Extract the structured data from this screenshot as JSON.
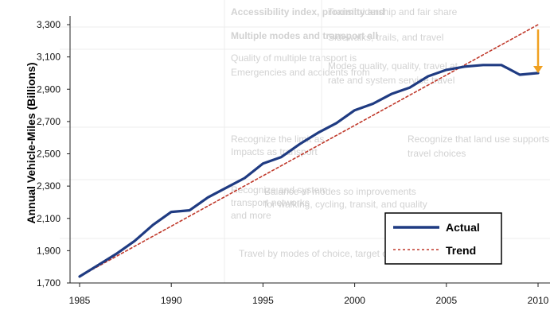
{
  "background_table": {
    "rows": [
      [
        "Accessibility index, proximity and",
        "Transit ridership and fair share"
      ],
      [
        "Multiple modes and transport all",
        "Sidewalks, trails, and travel"
      ],
      [
        "Quality of multiple transport is",
        "Modes quality, quality, travel at"
      ],
      [
        "Emergencies and accidents from",
        "rate and system service travel"
      ],
      [
        "Recognize the limit as",
        "Recognize that land use supports"
      ],
      [
        "Impacts as transport",
        "travel choices"
      ],
      [
        "Recognize and system",
        "Balance of modes so improvements"
      ],
      [
        "transport networks",
        "for walking, cycling, transit, and quality"
      ],
      [
        "and more",
        ""
      ],
      [
        "",
        "Travel by modes of choice, target or transport (nominal)"
      ]
    ]
  },
  "chart_data": {
    "type": "line",
    "title": "",
    "xlabel": "",
    "ylabel": "Annual Vehicle-Miles (Billions)",
    "xlim": [
      1985,
      2010
    ],
    "ylim": [
      1700,
      3300
    ],
    "x_ticks": [
      "1985",
      "1990",
      "1995",
      "2000",
      "2005",
      "2010"
    ],
    "y_ticks": [
      "1,700",
      "1,900",
      "2,100",
      "2,300",
      "2,500",
      "2,700",
      "2,900",
      "3,100",
      "3,300"
    ],
    "series": [
      {
        "name": "Actual",
        "color": "#1f3b82",
        "style": "solid",
        "x": [
          1985,
          1986,
          1987,
          1988,
          1989,
          1990,
          1991,
          1992,
          1993,
          1994,
          1995,
          1996,
          1997,
          1998,
          1999,
          2000,
          2001,
          2002,
          2003,
          2004,
          2005,
          2006,
          2007,
          2008,
          2009,
          2010
        ],
        "values": [
          1740,
          1810,
          1880,
          1960,
          2060,
          2140,
          2150,
          2230,
          2290,
          2350,
          2440,
          2480,
          2560,
          2630,
          2690,
          2770,
          2810,
          2870,
          2910,
          2980,
          3020,
          3040,
          3050,
          3050,
          2990,
          3000
        ]
      },
      {
        "name": "Trend",
        "color": "#c0392b",
        "style": "dotted",
        "x": [
          1985,
          2010
        ],
        "values": [
          1740,
          3300
        ]
      }
    ],
    "annotations": [
      {
        "type": "arrow",
        "x": 2010,
        "from": 3270,
        "to": 3000,
        "color": "#f0a020"
      }
    ],
    "grid": false,
    "legend_position": "bottom-right"
  }
}
